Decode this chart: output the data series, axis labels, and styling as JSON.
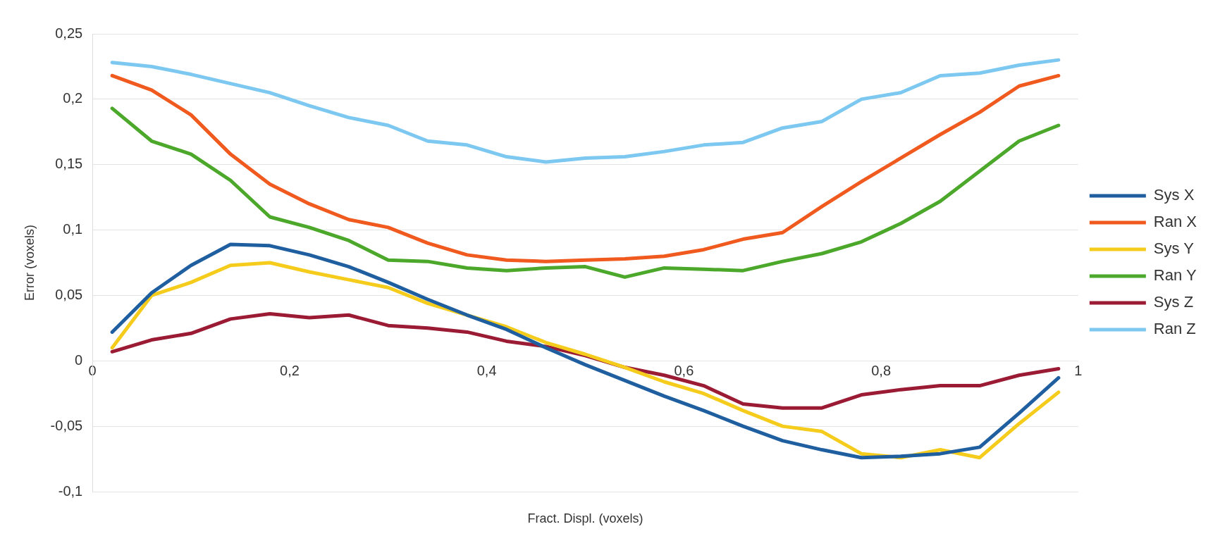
{
  "chart_data": {
    "type": "line",
    "xlabel": "Fract. Displ. (voxels)",
    "ylabel": "Error (voxels)",
    "x": [
      0.02,
      0.06,
      0.1,
      0.14,
      0.18,
      0.22,
      0.26,
      0.3,
      0.34,
      0.38,
      0.42,
      0.46,
      0.5,
      0.54,
      0.58,
      0.62,
      0.66,
      0.7,
      0.74,
      0.78,
      0.82,
      0.86,
      0.9,
      0.94,
      0.98
    ],
    "series": [
      {
        "name": "Sys X",
        "color": "#1f5fa0",
        "values": [
          0.022,
          0.052,
          0.073,
          0.089,
          0.088,
          0.081,
          0.072,
          0.06,
          0.047,
          0.035,
          0.024,
          0.01,
          -0.003,
          -0.015,
          -0.027,
          -0.038,
          -0.05,
          -0.061,
          -0.068,
          -0.074,
          -0.073,
          -0.071,
          -0.066,
          -0.04,
          -0.013
        ]
      },
      {
        "name": "Ran X",
        "color": "#f05a1e",
        "values": [
          0.218,
          0.207,
          0.188,
          0.158,
          0.135,
          0.12,
          0.108,
          0.102,
          0.09,
          0.081,
          0.077,
          0.076,
          0.077,
          0.078,
          0.08,
          0.085,
          0.093,
          0.098,
          0.118,
          0.137,
          0.155,
          0.173,
          0.19,
          0.21,
          0.218
        ]
      },
      {
        "name": "Sys Y",
        "color": "#f5cc1c",
        "values": [
          0.01,
          0.05,
          0.06,
          0.073,
          0.075,
          0.068,
          0.062,
          0.056,
          0.044,
          0.035,
          0.026,
          0.014,
          0.005,
          -0.005,
          -0.016,
          -0.025,
          -0.038,
          -0.05,
          -0.054,
          -0.071,
          -0.074,
          -0.068,
          -0.074,
          -0.048,
          -0.024
        ]
      },
      {
        "name": "Ran Y",
        "color": "#4ca82a",
        "values": [
          0.193,
          0.168,
          0.158,
          0.138,
          0.11,
          0.102,
          0.092,
          0.077,
          0.076,
          0.071,
          0.069,
          0.071,
          0.072,
          0.064,
          0.071,
          0.07,
          0.069,
          0.076,
          0.082,
          0.091,
          0.105,
          0.122,
          0.145,
          0.168,
          0.18
        ]
      },
      {
        "name": "Sys Z",
        "color": "#9a1b33",
        "values": [
          0.007,
          0.016,
          0.021,
          0.032,
          0.036,
          0.033,
          0.035,
          0.027,
          0.025,
          0.022,
          0.015,
          0.011,
          0.004,
          -0.005,
          -0.011,
          -0.019,
          -0.033,
          -0.036,
          -0.036,
          -0.026,
          -0.022,
          -0.019,
          -0.019,
          -0.011,
          -0.006
        ]
      },
      {
        "name": "Ran Z",
        "color": "#7cc8f0",
        "values": [
          0.228,
          0.225,
          0.219,
          0.212,
          0.205,
          0.195,
          0.186,
          0.18,
          0.168,
          0.165,
          0.156,
          0.152,
          0.155,
          0.156,
          0.16,
          0.165,
          0.167,
          0.178,
          0.183,
          0.2,
          0.205,
          0.218,
          0.22,
          0.226,
          0.23
        ]
      }
    ],
    "xlim": [
      0,
      1
    ],
    "xticks": [
      0,
      {
        "value": 0.2,
        "label": "0,2"
      },
      {
        "value": 0.4,
        "label": "0,4"
      },
      {
        "value": 0.6,
        "label": "0,6"
      },
      {
        "value": 0.8,
        "label": "0,8"
      },
      1
    ],
    "ylim": [
      -0.1,
      0.25
    ],
    "yticks": [
      {
        "value": -0.1,
        "label": "-0,1"
      },
      {
        "value": -0.05,
        "label": "-0,05"
      },
      0,
      {
        "value": 0.05,
        "label": "0,05"
      },
      {
        "value": 0.1,
        "label": "0,1"
      },
      {
        "value": 0.15,
        "label": "0,15"
      },
      {
        "value": 0.2,
        "label": "0,2"
      },
      {
        "value": 0.25,
        "label": "0,25"
      }
    ],
    "grid": "y",
    "legend": "right",
    "marker": "none",
    "line_style": "solid"
  }
}
